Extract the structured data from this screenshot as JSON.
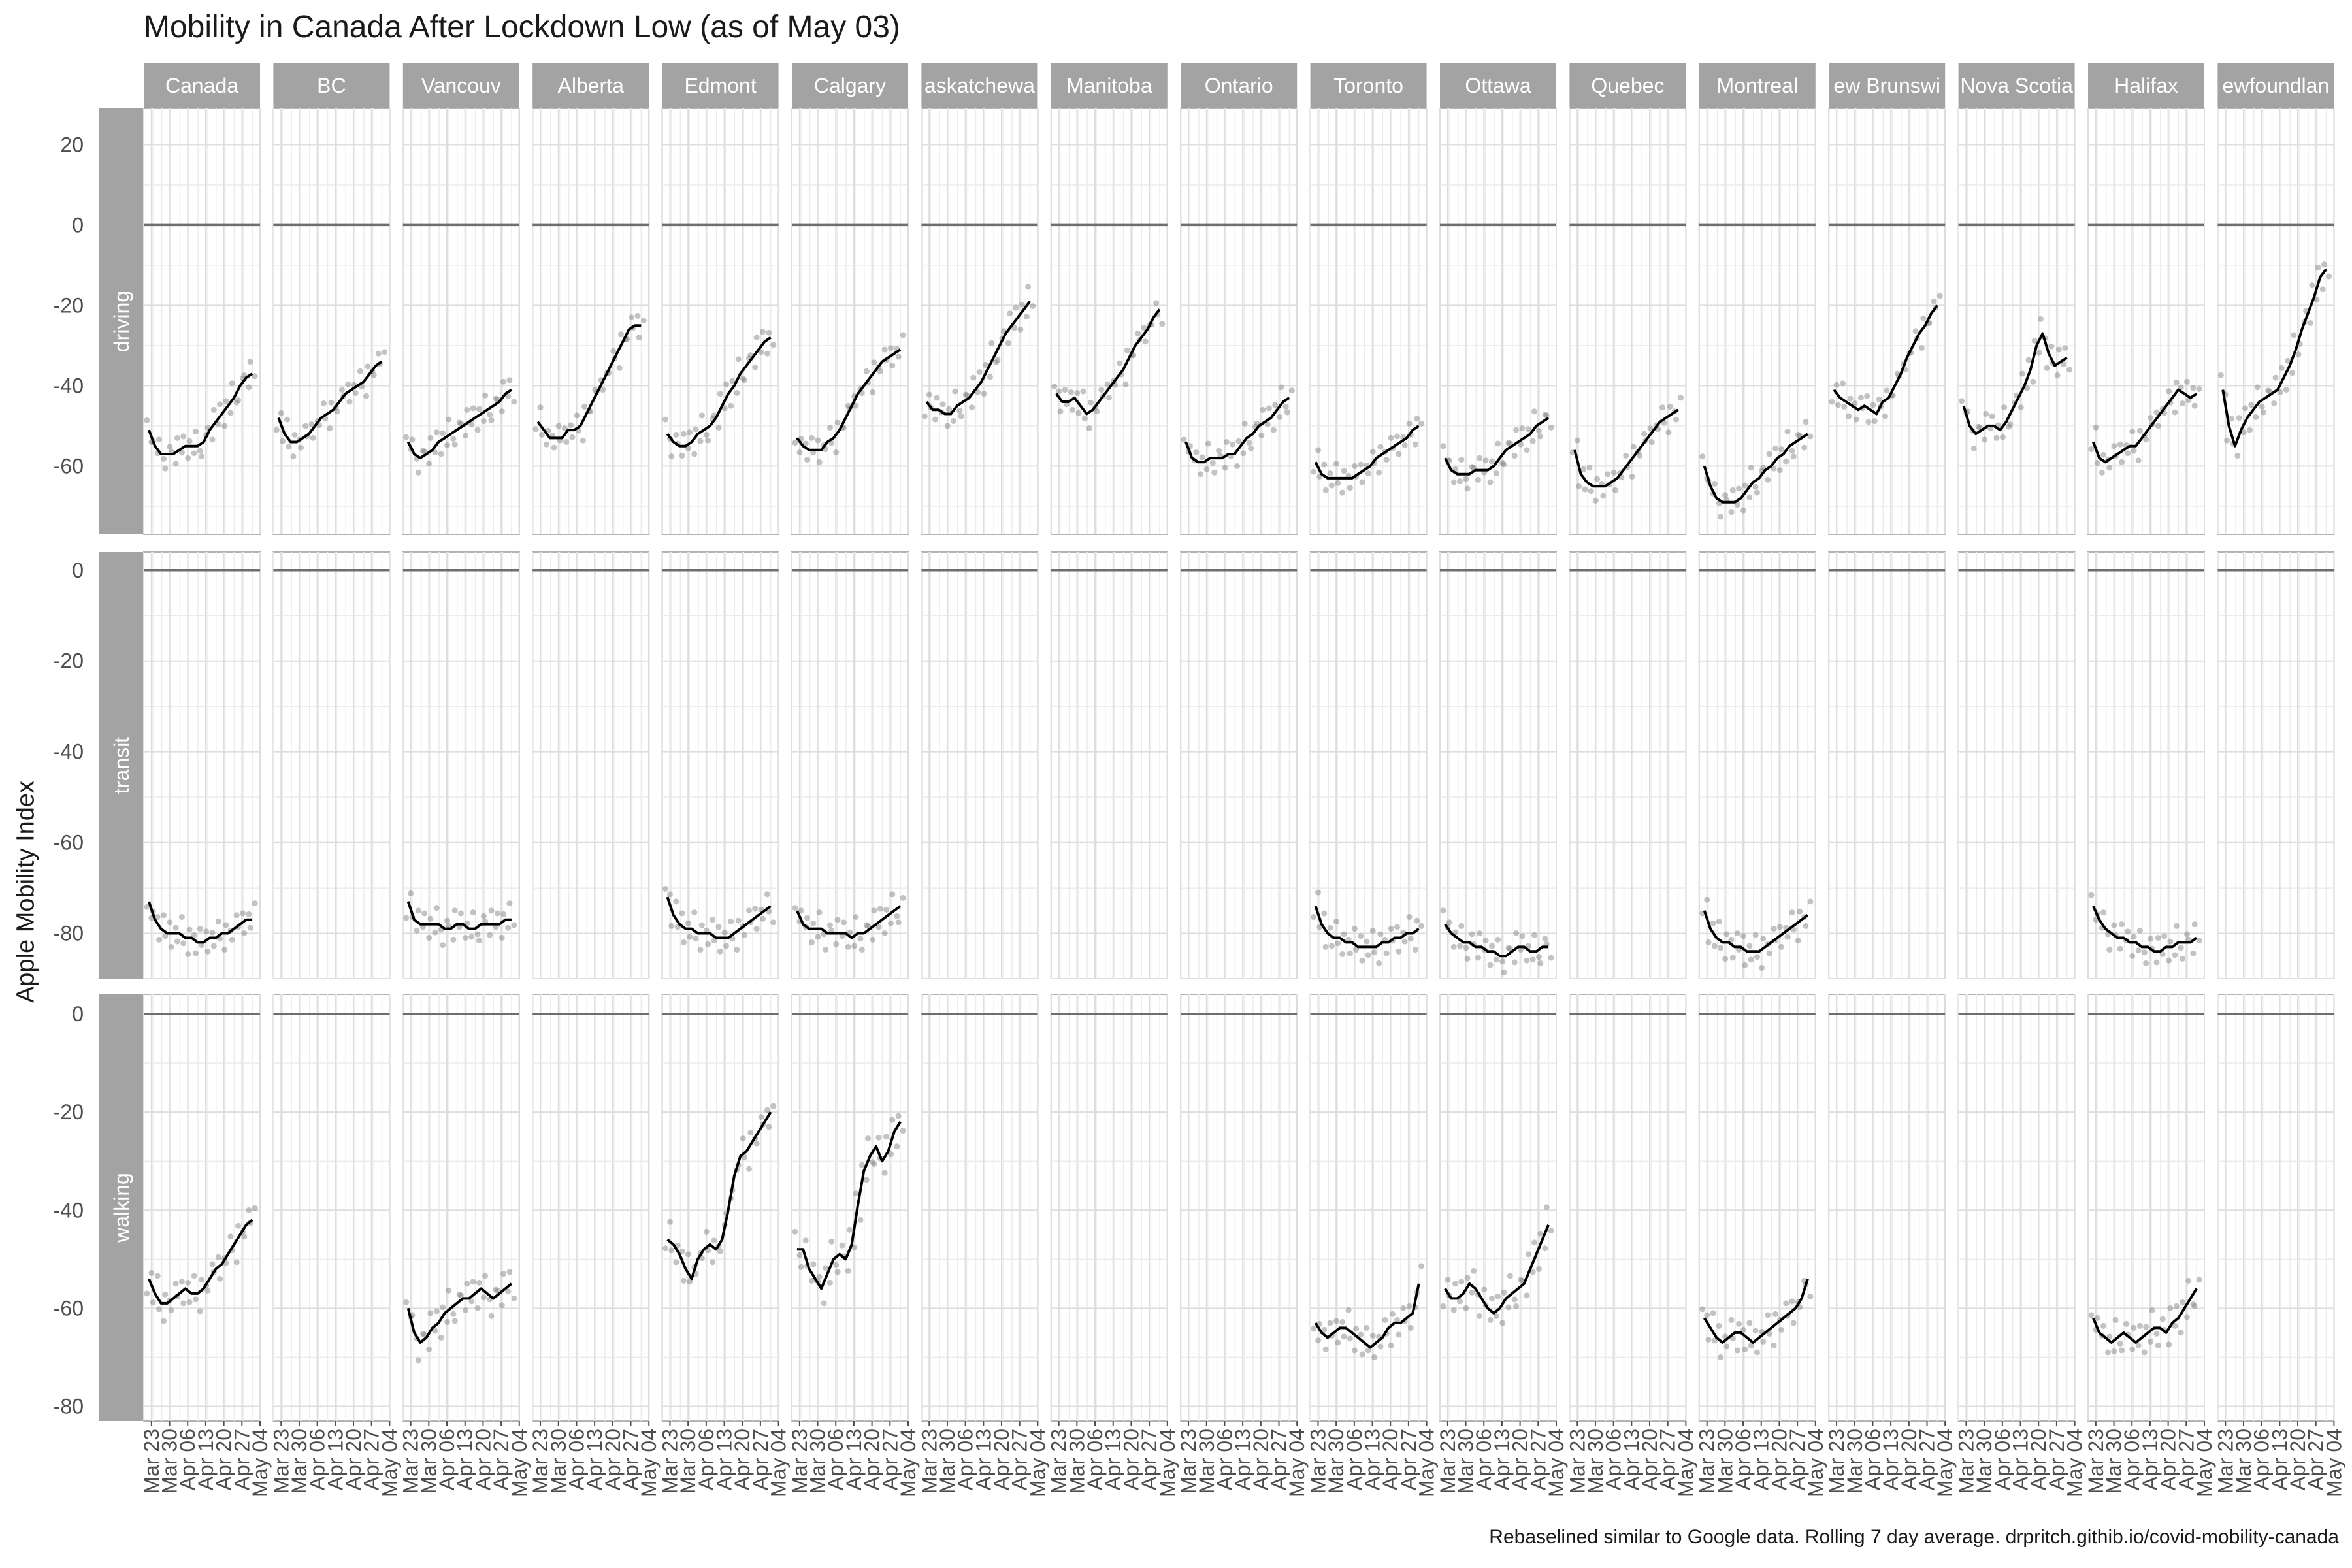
{
  "chart_data": {
    "type": "line",
    "title": "Mobility in Canada After Lockdown Low (as of May 03)",
    "ylabel": "Apple Mobility Index",
    "caption": "Rebaselined similar to Google data. Rolling 7 day average. drpritch.githib.io/covid-mobility-canada",
    "regions": [
      "Canada",
      "BC",
      "Vancouv",
      "Alberta",
      "Edmont",
      "Calgary",
      "askatchewa",
      "Manitoba",
      "Ontario",
      "Toronto",
      "Ottawa",
      "Quebec",
      "Montreal",
      "ew Brunswi",
      "Nova Scotia",
      "Halifax",
      "ewfoundlan"
    ],
    "modes": [
      "driving",
      "transit",
      "walking"
    ],
    "x_ticks": [
      "Mar 23",
      "Mar 30",
      "Apr 06",
      "Apr 13",
      "Apr 20",
      "Apr 27",
      "May 04"
    ],
    "x_range": [
      "Mar 20",
      "May 04"
    ],
    "y_ranges": {
      "driving": [
        -77,
        29
      ],
      "transit": [
        -90,
        4
      ],
      "walking": [
        -83,
        4
      ]
    },
    "y_ticks": {
      "driving": [
        20,
        0,
        -20,
        -40,
        -60
      ],
      "transit": [
        0,
        -20,
        -40,
        -60,
        -80
      ],
      "walking": [
        0,
        -20,
        -40,
        -60,
        -80
      ]
    },
    "series": [
      {
        "mode": "driving",
        "region": "Canada",
        "y": [
          -51,
          -55,
          -57,
          -57,
          -57,
          -56,
          -55,
          -55,
          -55,
          -54,
          -51,
          -49,
          -47,
          -45,
          -43,
          -40,
          -38,
          -37
        ]
      },
      {
        "mode": "driving",
        "region": "BC",
        "y": [
          -48,
          -52,
          -54,
          -54,
          -53,
          -52,
          -50,
          -48,
          -47,
          -46,
          -44,
          -42,
          -41,
          -40,
          -39,
          -37,
          -35,
          -34
        ]
      },
      {
        "mode": "driving",
        "region": "Vancouv",
        "y": [
          -54,
          -57,
          -58,
          -57,
          -56,
          -54,
          -53,
          -52,
          -51,
          -50,
          -49,
          -48,
          -47,
          -46,
          -45,
          -44,
          -42,
          -41
        ]
      },
      {
        "mode": "driving",
        "region": "Alberta",
        "y": [
          -49,
          -51,
          -53,
          -53,
          -53,
          -51,
          -51,
          -50,
          -47,
          -44,
          -41,
          -38,
          -35,
          -32,
          -29,
          -26,
          -25,
          -25
        ]
      },
      {
        "mode": "driving",
        "region": "Edmont",
        "y": [
          -52,
          -54,
          -55,
          -55,
          -54,
          -52,
          -51,
          -50,
          -48,
          -45,
          -42,
          -40,
          -37,
          -35,
          -33,
          -31,
          -29,
          -28
        ]
      },
      {
        "mode": "driving",
        "region": "Calgary",
        "y": [
          -53,
          -55,
          -56,
          -56,
          -56,
          -54,
          -53,
          -51,
          -48,
          -45,
          -42,
          -40,
          -38,
          -36,
          -34,
          -33,
          -32,
          -31
        ]
      },
      {
        "mode": "driving",
        "region": "askatchewa",
        "y": [
          -44,
          -46,
          -46,
          -47,
          -47,
          -45,
          -44,
          -43,
          -41,
          -39,
          -36,
          -33,
          -30,
          -27,
          -25,
          -23,
          -21,
          -19
        ]
      },
      {
        "mode": "driving",
        "region": "Manitoba",
        "y": [
          -42,
          -44,
          -44,
          -43,
          -45,
          -47,
          -46,
          -44,
          -42,
          -40,
          -38,
          -36,
          -33,
          -30,
          -28,
          -26,
          -23,
          -21
        ]
      },
      {
        "mode": "driving",
        "region": "Ontario",
        "y": [
          -54,
          -58,
          -59,
          -59,
          -58,
          -58,
          -58,
          -57,
          -57,
          -55,
          -53,
          -52,
          -50,
          -49,
          -48,
          -46,
          -44,
          -43
        ]
      },
      {
        "mode": "driving",
        "region": "Toronto",
        "y": [
          -59,
          -62,
          -63,
          -63,
          -63,
          -63,
          -63,
          -62,
          -61,
          -60,
          -58,
          -57,
          -56,
          -55,
          -54,
          -53,
          -51,
          -50
        ]
      },
      {
        "mode": "driving",
        "region": "Ottawa",
        "y": [
          -58,
          -61,
          -62,
          -62,
          -62,
          -61,
          -61,
          -61,
          -60,
          -58,
          -56,
          -55,
          -54,
          -53,
          -52,
          -50,
          -49,
          -48
        ]
      },
      {
        "mode": "driving",
        "region": "Quebec",
        "y": [
          -56,
          -62,
          -64,
          -65,
          -65,
          -65,
          -64,
          -63,
          -61,
          -59,
          -57,
          -55,
          -53,
          -51,
          -49,
          -48,
          -47,
          -46
        ]
      },
      {
        "mode": "driving",
        "region": "Montreal",
        "y": [
          -60,
          -65,
          -68,
          -69,
          -69,
          -69,
          -68,
          -66,
          -64,
          -63,
          -61,
          -60,
          -58,
          -57,
          -55,
          -54,
          -53,
          -52
        ]
      },
      {
        "mode": "driving",
        "region": "ew Brunswi",
        "y": [
          -41,
          -43,
          -44,
          -45,
          -46,
          -45,
          -46,
          -47,
          -44,
          -43,
          -40,
          -37,
          -33,
          -30,
          -27,
          -25,
          -22,
          -20
        ]
      },
      {
        "mode": "driving",
        "region": "Nova Scotia",
        "y": [
          -45,
          -50,
          -52,
          -51,
          -50,
          -50,
          -51,
          -49,
          -46,
          -43,
          -40,
          -36,
          -30,
          -27,
          -32,
          -35,
          -34,
          -33
        ]
      },
      {
        "mode": "driving",
        "region": "Halifax",
        "y": [
          -54,
          -58,
          -59,
          -58,
          -57,
          -56,
          -55,
          -55,
          -53,
          -51,
          -49,
          -47,
          -45,
          -43,
          -41,
          -42,
          -43,
          -42
        ]
      },
      {
        "mode": "driving",
        "region": "ewfoundlan",
        "y": [
          -41,
          -50,
          -55,
          -51,
          -48,
          -46,
          -44,
          -43,
          -42,
          -41,
          -38,
          -35,
          -31,
          -26,
          -22,
          -18,
          -13,
          -11
        ]
      },
      {
        "mode": "transit",
        "region": "Canada",
        "y": [
          -73,
          -77,
          -79,
          -80,
          -80,
          -80,
          -81,
          -81,
          -82,
          -82,
          -81,
          -81,
          -80,
          -80,
          -79,
          -78,
          -77,
          -77
        ]
      },
      {
        "mode": "transit",
        "region": "Vancouv",
        "y": [
          -73,
          -77,
          -78,
          -78,
          -78,
          -78,
          -79,
          -79,
          -78,
          -78,
          -79,
          -79,
          -78,
          -78,
          -78,
          -78,
          -77,
          -77
        ]
      },
      {
        "mode": "transit",
        "region": "Edmont",
        "y": [
          -72,
          -76,
          -78,
          -79,
          -79,
          -80,
          -80,
          -80,
          -81,
          -81,
          -81,
          -80,
          -79,
          -78,
          -77,
          -76,
          -75,
          -74
        ]
      },
      {
        "mode": "transit",
        "region": "Calgary",
        "y": [
          -75,
          -78,
          -79,
          -79,
          -79,
          -80,
          -80,
          -80,
          -80,
          -81,
          -80,
          -80,
          -79,
          -78,
          -77,
          -76,
          -75,
          -74
        ]
      },
      {
        "mode": "transit",
        "region": "Toronto",
        "y": [
          -74,
          -78,
          -80,
          -81,
          -81,
          -82,
          -82,
          -83,
          -83,
          -83,
          -83,
          -82,
          -82,
          -81,
          -81,
          -80,
          -80,
          -79
        ]
      },
      {
        "mode": "transit",
        "region": "Ottawa",
        "y": [
          -78,
          -80,
          -81,
          -82,
          -82,
          -83,
          -83,
          -84,
          -84,
          -85,
          -85,
          -84,
          -83,
          -83,
          -84,
          -84,
          -83,
          -83
        ]
      },
      {
        "mode": "transit",
        "region": "Montreal",
        "y": [
          -75,
          -79,
          -81,
          -82,
          -82,
          -83,
          -83,
          -84,
          -84,
          -84,
          -83,
          -82,
          -81,
          -80,
          -79,
          -78,
          -77,
          -76
        ]
      },
      {
        "mode": "transit",
        "region": "Halifax",
        "y": [
          -74,
          -77,
          -79,
          -80,
          -81,
          -81,
          -82,
          -82,
          -83,
          -83,
          -84,
          -84,
          -83,
          -83,
          -82,
          -82,
          -82,
          -81
        ]
      },
      {
        "mode": "walking",
        "region": "Canada",
        "y": [
          -54,
          -57,
          -59,
          -59,
          -58,
          -57,
          -56,
          -57,
          -57,
          -56,
          -54,
          -52,
          -51,
          -49,
          -47,
          -45,
          -43,
          -42
        ]
      },
      {
        "mode": "walking",
        "region": "Vancouv",
        "y": [
          -60,
          -65,
          -67,
          -66,
          -64,
          -63,
          -61,
          -60,
          -59,
          -58,
          -58,
          -57,
          -56,
          -57,
          -58,
          -57,
          -56,
          -55
        ]
      },
      {
        "mode": "walking",
        "region": "Edmont",
        "y": [
          -46,
          -47,
          -49,
          -52,
          -54,
          -50,
          -48,
          -47,
          -48,
          -46,
          -40,
          -33,
          -29,
          -28,
          -26,
          -24,
          -22,
          -20
        ]
      },
      {
        "mode": "walking",
        "region": "Calgary",
        "y": [
          -48,
          -48,
          -52,
          -54,
          -56,
          -53,
          -50,
          -49,
          -50,
          -47,
          -39,
          -32,
          -29,
          -27,
          -30,
          -28,
          -24,
          -22
        ]
      },
      {
        "mode": "walking",
        "region": "Toronto",
        "y": [
          -63,
          -65,
          -66,
          -65,
          -64,
          -64,
          -65,
          -66,
          -67,
          -68,
          -67,
          -66,
          -64,
          -63,
          -63,
          -62,
          -61,
          -55
        ]
      },
      {
        "mode": "walking",
        "region": "Ottawa",
        "y": [
          -56,
          -58,
          -58,
          -57,
          -55,
          -56,
          -58,
          -60,
          -61,
          -60,
          -58,
          -57,
          -56,
          -55,
          -52,
          -49,
          -46,
          -43
        ]
      },
      {
        "mode": "walking",
        "region": "Montreal",
        "y": [
          -62,
          -64,
          -66,
          -67,
          -66,
          -65,
          -65,
          -66,
          -67,
          -66,
          -65,
          -64,
          -63,
          -62,
          -61,
          -60,
          -58,
          -54
        ]
      },
      {
        "mode": "walking",
        "region": "Halifax",
        "y": [
          -62,
          -65,
          -66,
          -67,
          -66,
          -65,
          -66,
          -67,
          -66,
          -65,
          -64,
          -64,
          -65,
          -63,
          -62,
          -60,
          -58,
          -56
        ]
      }
    ]
  }
}
